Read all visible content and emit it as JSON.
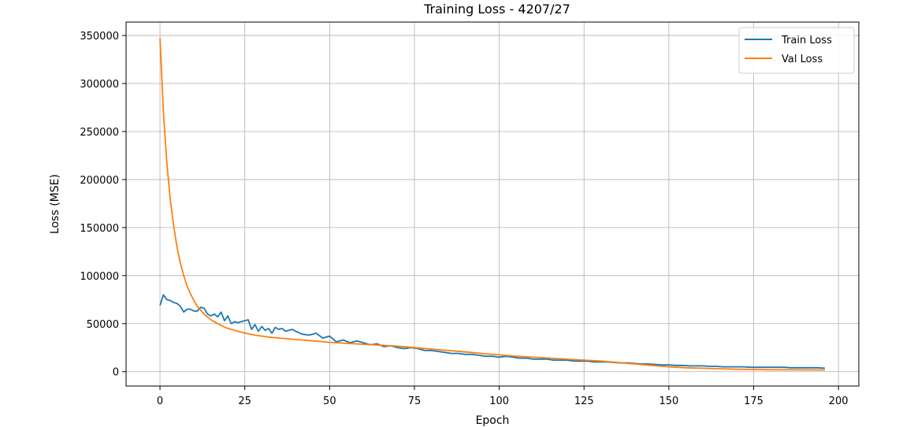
{
  "chart_data": {
    "type": "line",
    "title": "Training Loss - 4207/27",
    "xlabel": "Epoch",
    "ylabel": "Loss (MSE)",
    "xlim": [
      -10,
      206
    ],
    "ylim": [
      -15000,
      364000
    ],
    "xticks": [
      0,
      25,
      50,
      75,
      100,
      125,
      150,
      175,
      200
    ],
    "yticks": [
      0,
      50000,
      100000,
      150000,
      200000,
      250000,
      300000,
      350000
    ],
    "grid": true,
    "legend_position": "top-right",
    "series": [
      {
        "name": "Train Loss",
        "color": "#1f77b4",
        "points": [
          [
            0,
            69000
          ],
          [
            1,
            80000
          ],
          [
            2,
            75000
          ],
          [
            3,
            74000
          ],
          [
            4,
            72000
          ],
          [
            5,
            71000
          ],
          [
            6,
            68000
          ],
          [
            7,
            62000
          ],
          [
            8,
            65000
          ],
          [
            9,
            65000
          ],
          [
            10,
            63000
          ],
          [
            11,
            63000
          ],
          [
            12,
            67000
          ],
          [
            13,
            66000
          ],
          [
            14,
            60000
          ],
          [
            15,
            58000
          ],
          [
            16,
            60000
          ],
          [
            17,
            57000
          ],
          [
            18,
            62000
          ],
          [
            19,
            53000
          ],
          [
            20,
            58000
          ],
          [
            21,
            50000
          ],
          [
            22,
            52000
          ],
          [
            23,
            51000
          ],
          [
            24,
            52000
          ],
          [
            25,
            53000
          ],
          [
            26,
            54000
          ],
          [
            27,
            44000
          ],
          [
            28,
            49000
          ],
          [
            29,
            42000
          ],
          [
            30,
            47000
          ],
          [
            31,
            43000
          ],
          [
            32,
            45000
          ],
          [
            33,
            40000
          ],
          [
            34,
            46000
          ],
          [
            35,
            44000
          ],
          [
            36,
            45000
          ],
          [
            37,
            42000
          ],
          [
            38,
            43000
          ],
          [
            39,
            44000
          ],
          [
            40,
            42000
          ],
          [
            42,
            39000
          ],
          [
            44,
            38000
          ],
          [
            46,
            40000
          ],
          [
            48,
            35000
          ],
          [
            50,
            37000
          ],
          [
            52,
            31000
          ],
          [
            54,
            33000
          ],
          [
            56,
            30000
          ],
          [
            58,
            32000
          ],
          [
            60,
            30000
          ],
          [
            62,
            28000
          ],
          [
            64,
            29000
          ],
          [
            66,
            26000
          ],
          [
            68,
            27000
          ],
          [
            70,
            25000
          ],
          [
            72,
            24000
          ],
          [
            74,
            25000
          ],
          [
            76,
            24000
          ],
          [
            78,
            22000
          ],
          [
            80,
            22000
          ],
          [
            82,
            21000
          ],
          [
            84,
            20000
          ],
          [
            86,
            19000
          ],
          [
            88,
            19000
          ],
          [
            90,
            18000
          ],
          [
            92,
            18000
          ],
          [
            94,
            17000
          ],
          [
            96,
            16000
          ],
          [
            98,
            16000
          ],
          [
            100,
            15000
          ],
          [
            102,
            16000
          ],
          [
            104,
            15000
          ],
          [
            106,
            14000
          ],
          [
            108,
            14000
          ],
          [
            110,
            13000
          ],
          [
            112,
            13000
          ],
          [
            114,
            13000
          ],
          [
            116,
            12000
          ],
          [
            118,
            12000
          ],
          [
            120,
            12000
          ],
          [
            122,
            11000
          ],
          [
            124,
            11000
          ],
          [
            126,
            11000
          ],
          [
            128,
            10000
          ],
          [
            130,
            10000
          ],
          [
            132,
            10000
          ],
          [
            134,
            9500
          ],
          [
            136,
            9000
          ],
          [
            138,
            9000
          ],
          [
            140,
            8500
          ],
          [
            142,
            8000
          ],
          [
            144,
            8000
          ],
          [
            146,
            7500
          ],
          [
            148,
            7000
          ],
          [
            150,
            7000
          ],
          [
            152,
            6500
          ],
          [
            154,
            6500
          ],
          [
            156,
            6000
          ],
          [
            158,
            6000
          ],
          [
            160,
            6000
          ],
          [
            162,
            5500
          ],
          [
            164,
            5500
          ],
          [
            166,
            5000
          ],
          [
            168,
            5000
          ],
          [
            170,
            5000
          ],
          [
            172,
            5000
          ],
          [
            174,
            4500
          ],
          [
            176,
            4500
          ],
          [
            178,
            4500
          ],
          [
            180,
            4500
          ],
          [
            182,
            4500
          ],
          [
            184,
            4500
          ],
          [
            186,
            4000
          ],
          [
            188,
            4000
          ],
          [
            190,
            4000
          ],
          [
            192,
            4000
          ],
          [
            194,
            4000
          ],
          [
            196,
            3500
          ]
        ]
      },
      {
        "name": "Val Loss",
        "color": "#ff7f0e",
        "points": [
          [
            0,
            347000
          ],
          [
            1,
            270000
          ],
          [
            2,
            218000
          ],
          [
            3,
            180000
          ],
          [
            4,
            152000
          ],
          [
            5,
            130000
          ],
          [
            6,
            113000
          ],
          [
            7,
            100000
          ],
          [
            8,
            89000
          ],
          [
            9,
            81000
          ],
          [
            10,
            74000
          ],
          [
            11,
            68000
          ],
          [
            12,
            64000
          ],
          [
            13,
            60000
          ],
          [
            14,
            57000
          ],
          [
            15,
            54000
          ],
          [
            16,
            52000
          ],
          [
            17,
            50000
          ],
          [
            18,
            48000
          ],
          [
            20,
            45000
          ],
          [
            22,
            43000
          ],
          [
            24,
            41000
          ],
          [
            26,
            39500
          ],
          [
            28,
            38000
          ],
          [
            30,
            37000
          ],
          [
            32,
            36000
          ],
          [
            35,
            35000
          ],
          [
            40,
            33500
          ],
          [
            45,
            32000
          ],
          [
            50,
            30500
          ],
          [
            55,
            29500
          ],
          [
            60,
            28500
          ],
          [
            65,
            27500
          ],
          [
            70,
            26500
          ],
          [
            75,
            25000
          ],
          [
            80,
            23500
          ],
          [
            85,
            22000
          ],
          [
            90,
            20500
          ],
          [
            95,
            19000
          ],
          [
            100,
            17500
          ],
          [
            105,
            16000
          ],
          [
            110,
            15000
          ],
          [
            115,
            14000
          ],
          [
            120,
            13000
          ],
          [
            125,
            12000
          ],
          [
            130,
            11000
          ],
          [
            135,
            9500
          ],
          [
            140,
            8000
          ],
          [
            145,
            6500
          ],
          [
            150,
            5000
          ],
          [
            155,
            4000
          ],
          [
            160,
            3500
          ],
          [
            165,
            3000
          ],
          [
            170,
            2500
          ],
          [
            175,
            2200
          ],
          [
            180,
            2000
          ],
          [
            185,
            1900
          ],
          [
            190,
            1800
          ],
          [
            196,
            1700
          ]
        ]
      }
    ]
  }
}
